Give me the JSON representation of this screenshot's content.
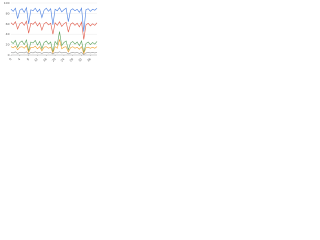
{
  "chart_data": {
    "type": "line",
    "x": [
      0,
      1,
      2,
      3,
      4,
      5,
      6,
      7,
      8,
      9,
      10,
      11,
      12,
      13,
      14,
      15,
      16,
      17,
      18,
      19,
      20,
      21,
      22,
      23,
      24,
      25,
      26,
      27,
      28,
      29,
      30,
      31,
      32,
      33,
      34,
      35,
      36,
      37,
      38,
      39
    ],
    "xlim": [
      0,
      39
    ],
    "xticks": [
      0,
      4,
      8,
      12,
      16,
      20,
      24,
      28,
      32,
      36
    ],
    "ylim": [
      0,
      100
    ],
    "yticks": [
      0,
      20,
      40,
      60,
      80,
      100
    ],
    "grid": true,
    "series": [
      {
        "color": "#4a7fe0",
        "values": [
          88,
          84,
          90,
          70,
          86,
          89,
          82,
          91,
          60,
          87,
          85,
          90,
          83,
          88,
          72,
          86,
          90,
          84,
          89,
          58,
          88,
          85,
          91,
          83,
          87,
          90,
          64,
          86,
          89,
          85,
          88,
          82,
          90,
          45,
          87,
          89,
          84,
          88,
          86,
          90
        ]
      },
      {
        "color": "#e05a4a",
        "values": [
          62,
          58,
          64,
          50,
          60,
          63,
          57,
          65,
          42,
          61,
          59,
          64,
          56,
          62,
          48,
          60,
          63,
          58,
          61,
          40,
          62,
          57,
          64,
          55,
          60,
          63,
          44,
          59,
          62,
          57,
          61,
          54,
          63,
          30,
          58,
          61,
          56,
          60,
          57,
          62
        ]
      },
      {
        "color": "#5aa05a",
        "values": [
          26,
          22,
          28,
          15,
          24,
          27,
          20,
          29,
          8,
          25,
          23,
          28,
          19,
          26,
          12,
          24,
          27,
          21,
          25,
          6,
          26,
          20,
          45,
          18,
          24,
          27,
          10,
          23,
          26,
          21,
          25,
          18,
          27,
          5,
          22,
          25,
          20,
          24,
          21,
          26
        ]
      },
      {
        "color": "#f0a030",
        "values": [
          16,
          14,
          17,
          10,
          15,
          16,
          13,
          18,
          5,
          15,
          14,
          17,
          12,
          16,
          8,
          15,
          16,
          13,
          15,
          4,
          16,
          13,
          30,
          12,
          15,
          16,
          6,
          14,
          16,
          13,
          15,
          11,
          16,
          3,
          14,
          15,
          13,
          15,
          13,
          16
        ]
      },
      {
        "color": "#9a9a9a",
        "values": [
          5,
          4,
          6,
          3,
          5,
          5,
          4,
          6,
          2,
          5,
          4,
          6,
          4,
          5,
          3,
          5,
          5,
          4,
          5,
          2,
          5,
          4,
          6,
          4,
          5,
          5,
          2,
          4,
          5,
          4,
          5,
          3,
          5,
          1,
          4,
          5,
          4,
          5,
          4,
          5
        ]
      }
    ]
  }
}
